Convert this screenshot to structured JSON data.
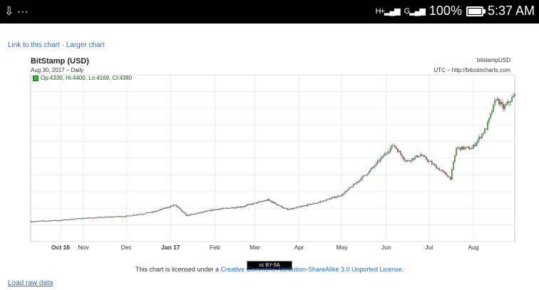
{
  "statusbar": {
    "left_icons": "⇩ ···",
    "net1": "H+",
    "net2": "G",
    "battery": "100%",
    "time": "5:37 AM"
  },
  "links": {
    "link_chart": "Link to this chart",
    "sep": " · ",
    "larger_chart": "Larger chart"
  },
  "chart_data": {
    "type": "candlestick",
    "title": "BitStamp (USD)",
    "subtitle": "Aug 30, 2017 – Daily",
    "ohlc_label": "Op:4330, Hi:4400, Lo:4169, Cl:4380",
    "source_line1": "bitstampUSD",
    "source_line2": "UTC – http://bitcoincharts.com",
    "x_ticks": [
      "Oct 16",
      "Nov",
      "Dec",
      "Jan 17",
      "Feb",
      "Mar",
      "Apr",
      "May",
      "Jun",
      "Jul",
      "Aug"
    ],
    "y_ticks": [
      0,
      500,
      1000,
      1500,
      2000,
      2500,
      3000,
      3500,
      4000,
      4500,
      5000
    ],
    "ylim": [
      0,
      5000
    ],
    "grid": true,
    "price_path": [
      {
        "date": "2016-09-25",
        "price": 600
      },
      {
        "date": "2016-10-16",
        "price": 640
      },
      {
        "date": "2016-11-01",
        "price": 700
      },
      {
        "date": "2016-12-01",
        "price": 760
      },
      {
        "date": "2016-12-20",
        "price": 890
      },
      {
        "date": "2017-01-04",
        "price": 1100
      },
      {
        "date": "2017-01-12",
        "price": 780
      },
      {
        "date": "2017-02-01",
        "price": 960
      },
      {
        "date": "2017-02-20",
        "price": 1050
      },
      {
        "date": "2017-03-10",
        "price": 1250
      },
      {
        "date": "2017-03-24",
        "price": 950
      },
      {
        "date": "2017-04-15",
        "price": 1180
      },
      {
        "date": "2017-05-01",
        "price": 1400
      },
      {
        "date": "2017-05-20",
        "price": 2100
      },
      {
        "date": "2017-06-06",
        "price": 2900
      },
      {
        "date": "2017-06-15",
        "price": 2400
      },
      {
        "date": "2017-06-25",
        "price": 2600
      },
      {
        "date": "2017-07-16",
        "price": 1900
      },
      {
        "date": "2017-07-20",
        "price": 2800
      },
      {
        "date": "2017-07-31",
        "price": 2800
      },
      {
        "date": "2017-08-10",
        "price": 3400
      },
      {
        "date": "2017-08-17",
        "price": 4300
      },
      {
        "date": "2017-08-22",
        "price": 4000
      },
      {
        "date": "2017-08-30",
        "price": 4380
      }
    ]
  },
  "license": {
    "badge": "cc BY-SA",
    "prefix": "This chart is licensed under a ",
    "link": "Creative Commons Attribution-ShareAlike 3.0 Unported License",
    "suffix": "."
  },
  "raw_data": "Load raw data"
}
